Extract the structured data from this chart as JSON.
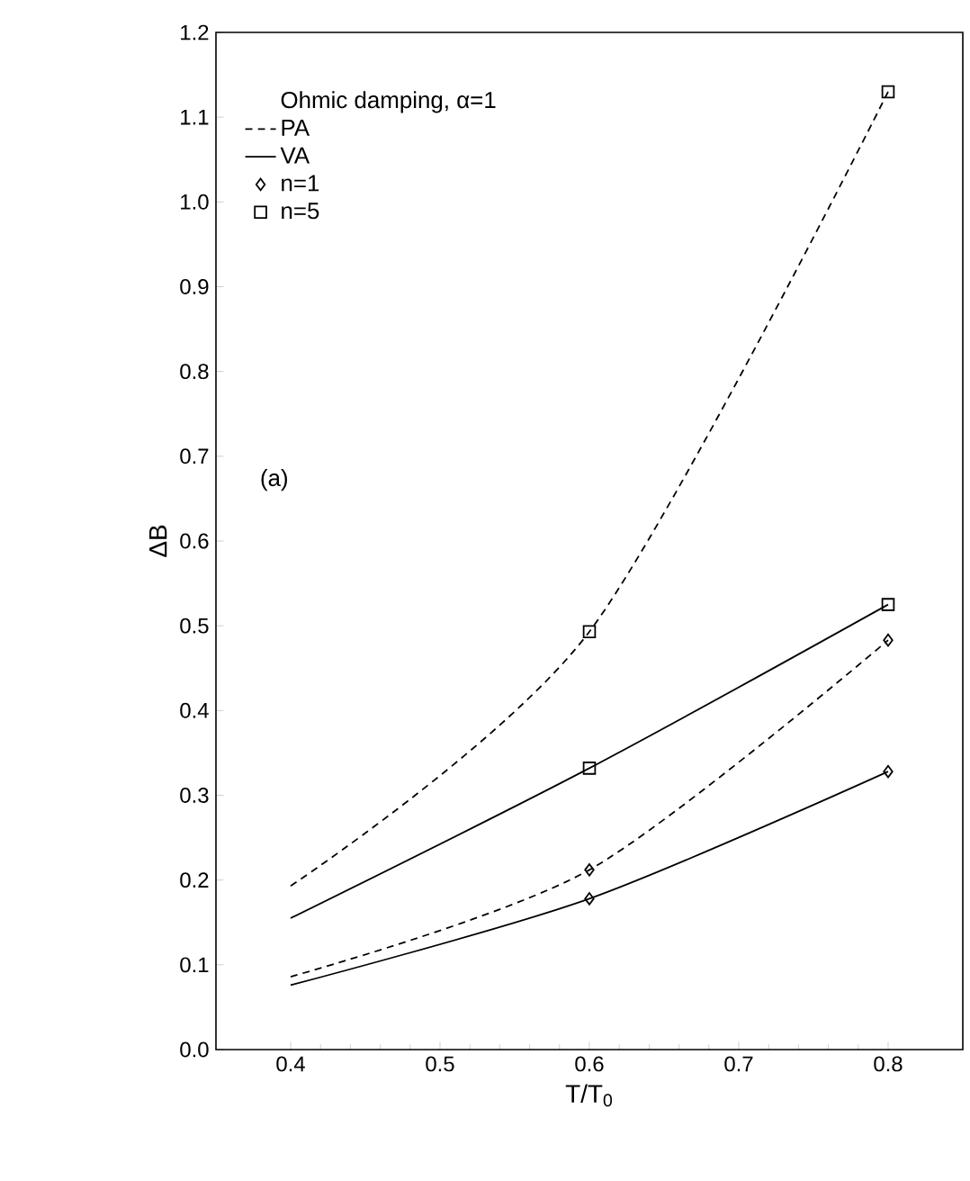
{
  "chart_data": {
    "type": "line",
    "xlabel": "T/T$_{0}$",
    "ylabel": "ΔB",
    "legend_title": "Ohmic damping, α=1",
    "annotations": [
      "(a)"
    ],
    "xlim": [
      0.35,
      0.85
    ],
    "ylim": [
      0,
      1.2
    ],
    "xticks": [
      0.4,
      0.5,
      0.6,
      0.7,
      0.8
    ],
    "yticks": [
      {
        "value": 0,
        "label": "0.0"
      },
      0.1,
      0.2,
      0.3,
      0.4,
      0.5,
      0.6,
      0.7,
      0.8,
      0.9,
      {
        "value": 1,
        "label": "1.0"
      },
      1.1,
      1.2
    ],
    "legend": "top left",
    "grid": false,
    "marker": "none",
    "series": [
      {
        "name": "PA",
        "color": "#000000",
        "line_style": "dashed",
        "x": [
          0.4,
          0.6,
          0.8
        ],
        "values": [
          0.193,
          0.493,
          1.13
        ]
      },
      {
        "name": "VA",
        "color": "#000000",
        "line_style": "solid",
        "x": [
          0.4,
          0.6,
          0.8
        ],
        "values": [
          0.155,
          0.332,
          0.525
        ]
      },
      {
        "color": "#000000",
        "line_style": "dashed",
        "x": [
          0.4,
          0.6,
          0.8
        ],
        "values": [
          0.086,
          0.212,
          0.483
        ]
      },
      {
        "color": "#000000",
        "line_style": "solid",
        "x": [
          0.4,
          0.6,
          0.8
        ],
        "values": [
          0.076,
          0.178,
          0.328
        ]
      },
      {
        "name": "n=1",
        "type": "scatter",
        "marker": "diamond",
        "color": "#000000",
        "x": [
          0.6,
          0.6,
          0.8,
          0.8
        ],
        "values": [
          0.212,
          0.178,
          0.483,
          0.328
        ]
      },
      {
        "name": "n=5",
        "type": "scatter",
        "marker": "square",
        "color": "#000000",
        "x": [
          0.6,
          0.6,
          0.8,
          0.8
        ],
        "values": [
          0.493,
          0.332,
          1.13,
          0.525
        ]
      }
    ]
  }
}
